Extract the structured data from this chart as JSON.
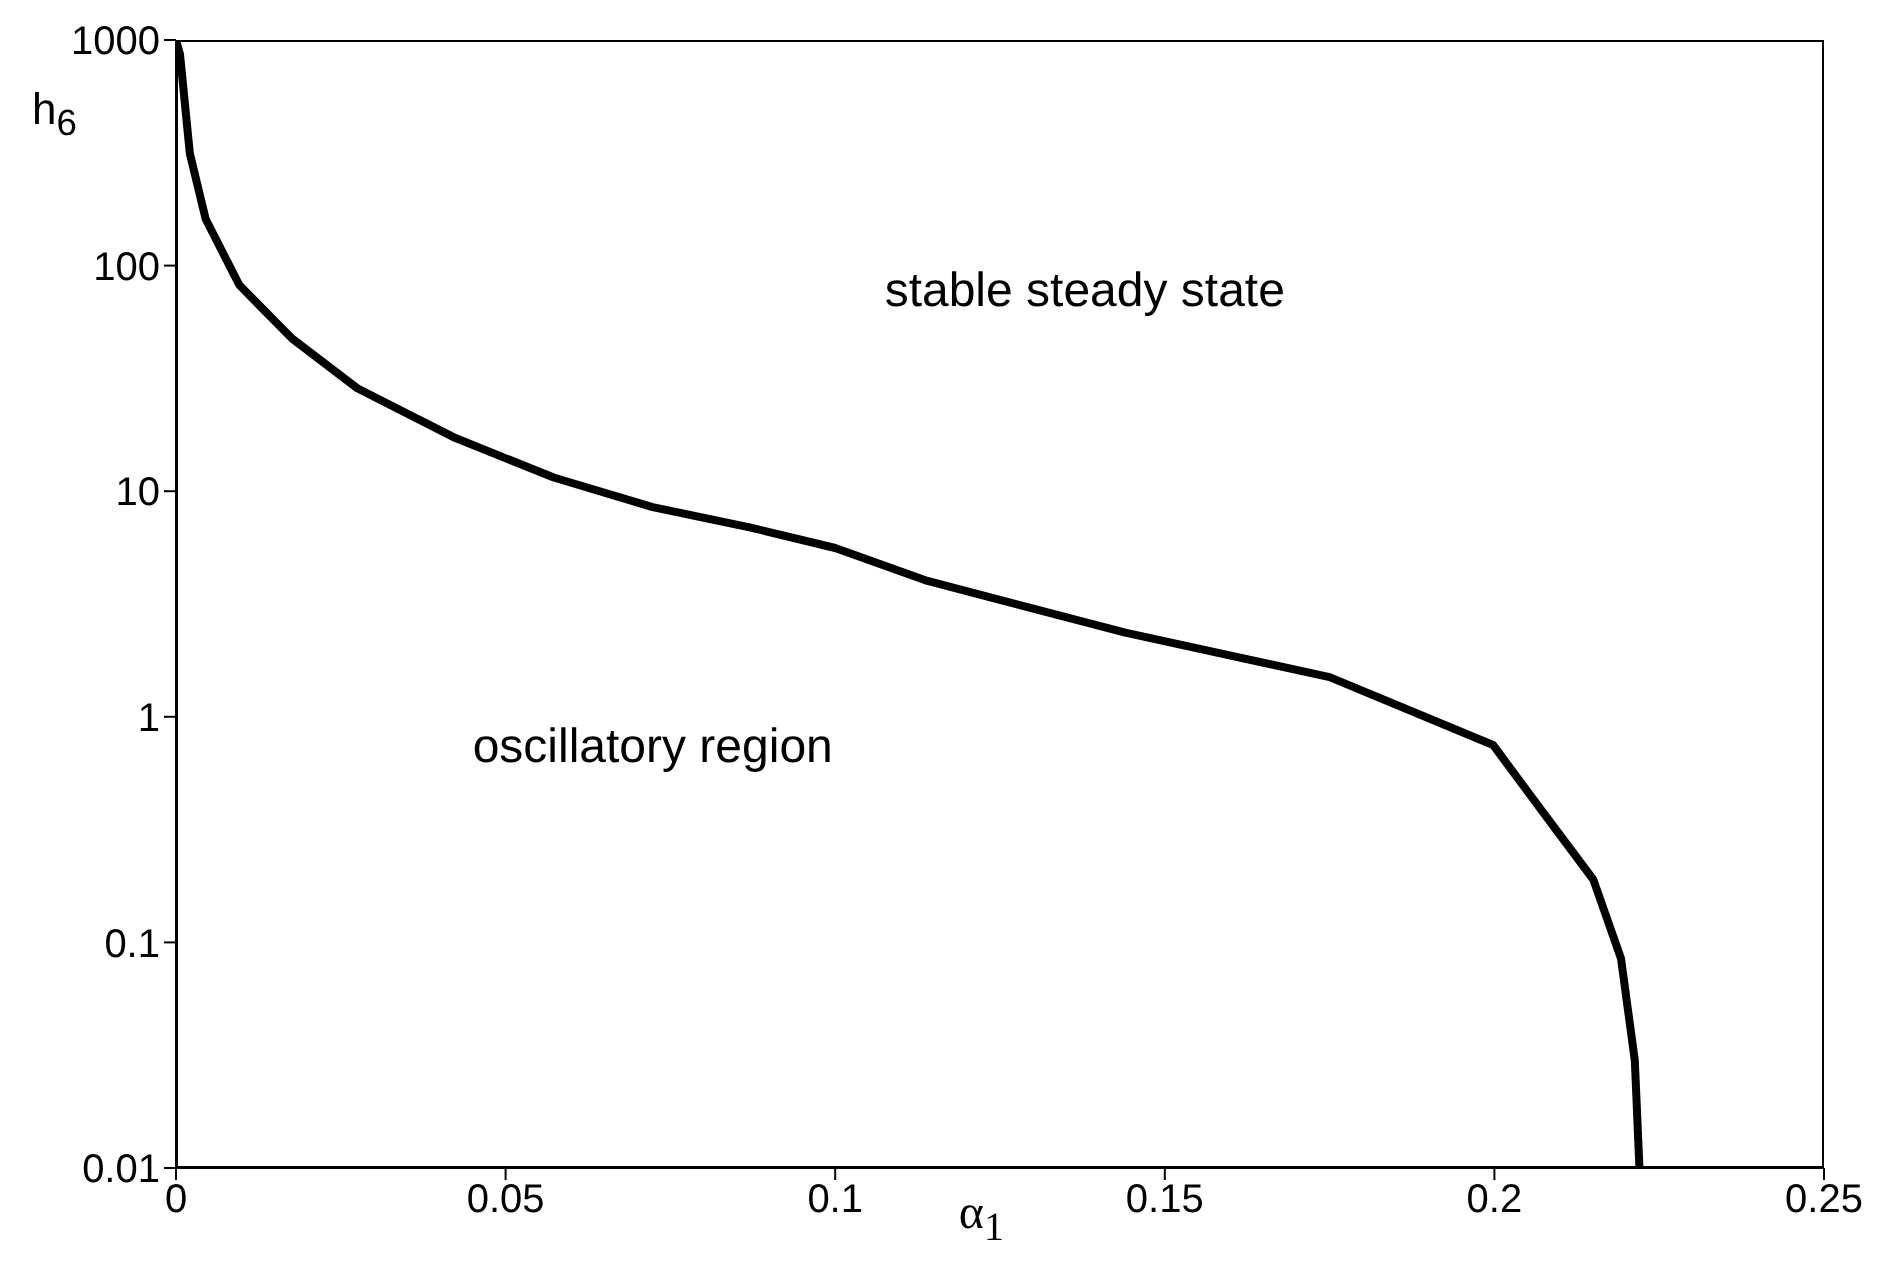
{
  "chart_data": {
    "type": "line",
    "xlabel": "α$_{1}$",
    "ylabel": "h$_{6}$",
    "log": "y",
    "marker": "none",
    "line_style": "solid",
    "xlim": [
      0,
      0.25
    ],
    "xticks": [
      0,
      0.05,
      0.1,
      0.15,
      0.2,
      0.25
    ],
    "ylim": [
      0.01,
      1000
    ],
    "yticks": [
      0.01,
      0.1,
      1,
      10,
      100,
      1000
    ],
    "x": [
      0,
      0.0006,
      0.0021,
      0.0045,
      0.0096,
      0.0176,
      0.0275,
      0.0424,
      0.0573,
      0.0723,
      0.0872,
      0.1,
      0.114,
      0.144,
      0.175,
      0.1998,
      0.2073,
      0.215,
      0.2192,
      0.2213,
      0.222
    ],
    "series": [
      {
        "color": "#000000",
        "values": [
          1000,
          867,
          314,
          161,
          82,
          47.5,
          28.6,
          17.2,
          11.5,
          8.5,
          6.9,
          5.6,
          4.0,
          2.36,
          1.5,
          0.75,
          0.38,
          0.19,
          0.085,
          0.03,
          0.01
        ]
      }
    ],
    "annotations": [
      "stable steady state",
      "oscillatory region"
    ]
  }
}
